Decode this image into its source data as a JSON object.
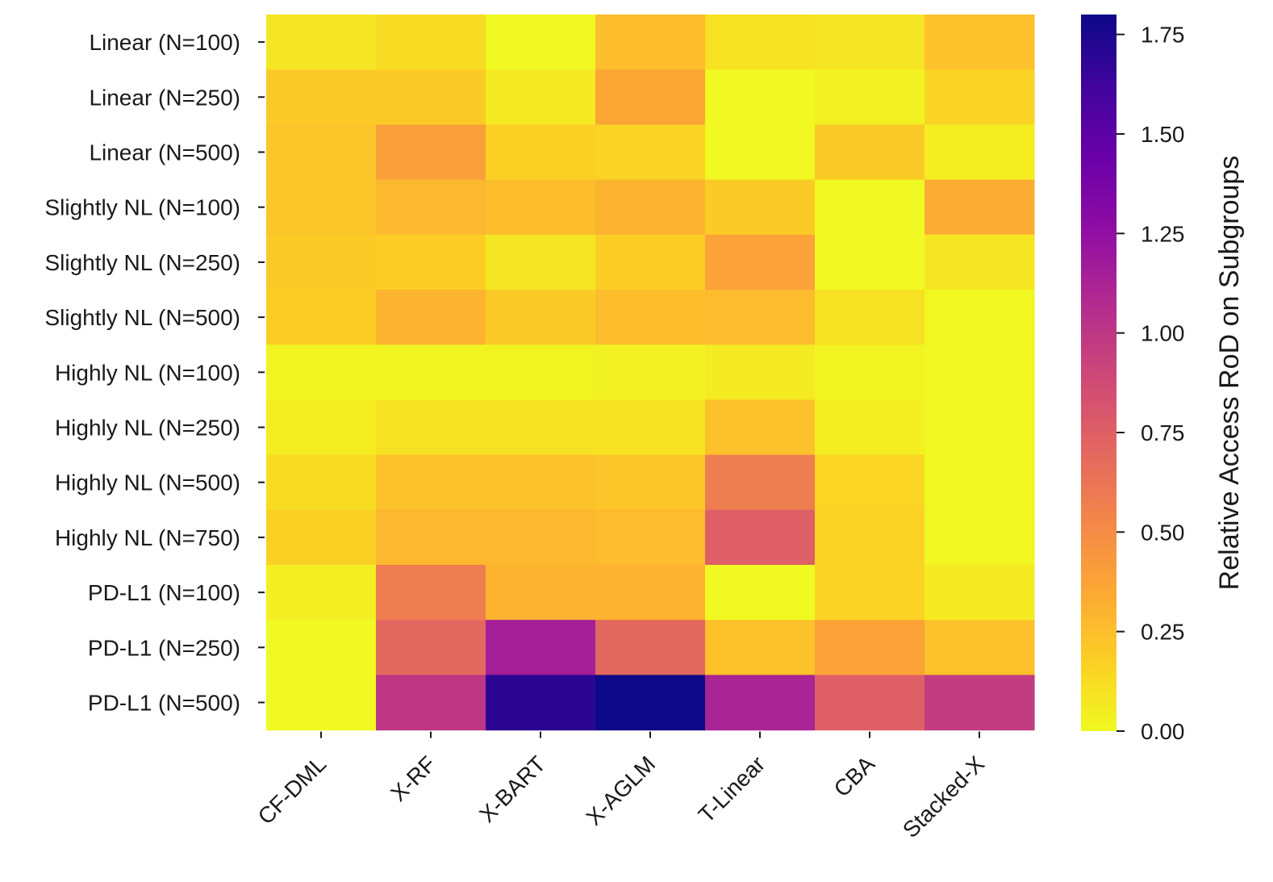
{
  "chart_data": {
    "type": "heatmap",
    "rows": [
      "Linear (N=100)",
      "Linear (N=250)",
      "Linear (N=500)",
      "Slightly NL (N=100)",
      "Slightly NL (N=250)",
      "Slightly NL (N=500)",
      "Highly NL (N=100)",
      "Highly NL (N=250)",
      "Highly NL (N=500)",
      "Highly NL (N=750)",
      "PD-L1 (N=100)",
      "PD-L1 (N=250)",
      "PD-L1 (N=500)"
    ],
    "columns": [
      "CF-DML",
      "X-RF",
      "X-BART",
      "X-AGLM",
      "T-Linear",
      "CBA",
      "Stacked-X"
    ],
    "values": [
      [
        0.08,
        0.12,
        0.0,
        0.25,
        0.1,
        0.08,
        0.24
      ],
      [
        0.2,
        0.2,
        0.06,
        0.36,
        0.0,
        0.03,
        0.16
      ],
      [
        0.22,
        0.39,
        0.17,
        0.16,
        0.0,
        0.2,
        0.05
      ],
      [
        0.22,
        0.28,
        0.25,
        0.3,
        0.2,
        0.0,
        0.33
      ],
      [
        0.2,
        0.18,
        0.08,
        0.18,
        0.38,
        0.0,
        0.08
      ],
      [
        0.18,
        0.3,
        0.2,
        0.25,
        0.26,
        0.1,
        0.01
      ],
      [
        0.02,
        0.02,
        0.02,
        0.03,
        0.06,
        0.02,
        0.01
      ],
      [
        0.05,
        0.1,
        0.1,
        0.1,
        0.24,
        0.04,
        0.01
      ],
      [
        0.12,
        0.24,
        0.24,
        0.22,
        0.58,
        0.15,
        0.01
      ],
      [
        0.17,
        0.28,
        0.28,
        0.26,
        0.75,
        0.16,
        0.01
      ],
      [
        0.04,
        0.58,
        0.3,
        0.3,
        0.0,
        0.16,
        0.06
      ],
      [
        0.0,
        0.7,
        1.15,
        0.7,
        0.24,
        0.38,
        0.24
      ],
      [
        0.0,
        1.0,
        1.7,
        1.8,
        1.12,
        0.75,
        0.97
      ]
    ],
    "colorbar": {
      "label": "Relative Access RoD on Subgroups",
      "range": [
        0,
        1.8
      ],
      "ticks": [
        0.0,
        0.25,
        0.5,
        0.75,
        1.0,
        1.25,
        1.5,
        1.75
      ],
      "tick_labels": [
        "0.00",
        "0.25",
        "0.50",
        "0.75",
        "1.00",
        "1.25",
        "1.50",
        "1.75"
      ],
      "colormap": "plasma_r"
    }
  }
}
